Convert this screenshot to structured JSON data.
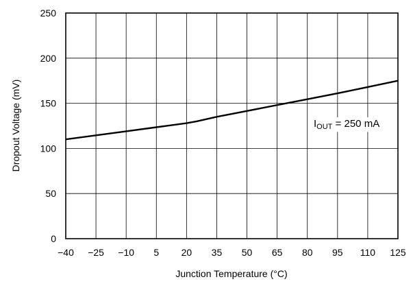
{
  "chart_data": {
    "type": "line",
    "xlabel": "Junction Temperature (°C)",
    "ylabel": "Dropout Voltage (mV)",
    "xlim": [
      -40,
      125
    ],
    "ylim": [
      0,
      250
    ],
    "x_ticks": [
      -40,
      -25,
      -10,
      5,
      20,
      35,
      50,
      65,
      80,
      95,
      110,
      125
    ],
    "x_tick_labels": [
      "−40",
      "−25",
      "−10",
      "5",
      "20",
      "35",
      "50",
      "65",
      "80",
      "95",
      "110",
      "125"
    ],
    "y_ticks": [
      0,
      50,
      100,
      150,
      200,
      250
    ],
    "y_tick_labels": [
      "0",
      "50",
      "100",
      "150",
      "200",
      "250"
    ],
    "grid": true,
    "series": [
      {
        "x": [
          -40,
          -25,
          -10,
          5,
          20,
          25,
          35,
          50,
          65,
          80,
          95,
          110,
          125
        ],
        "y": [
          110,
          114.5,
          119,
          123.5,
          128,
          130,
          135,
          141.5,
          148,
          154.5,
          161,
          168,
          175
        ]
      }
    ],
    "annotation": {
      "prefix": "I",
      "subscript": "OUT",
      "suffix": " = 250 mA"
    },
    "colors": {
      "line": "#000000",
      "grid": "#000000",
      "background": "#ffffff"
    }
  }
}
